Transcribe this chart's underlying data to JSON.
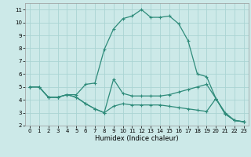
{
  "title": "",
  "xlabel": "Humidex (Indice chaleur)",
  "ylabel": "",
  "bg_color": "#cce9e8",
  "grid_color": "#aad4d3",
  "line_color": "#2e8b7a",
  "xlim": [
    -0.5,
    23.5
  ],
  "ylim": [
    2,
    11.5
  ],
  "yticks": [
    2,
    3,
    4,
    5,
    6,
    7,
    8,
    9,
    10,
    11
  ],
  "xticks": [
    0,
    1,
    2,
    3,
    4,
    5,
    6,
    7,
    8,
    9,
    10,
    11,
    12,
    13,
    14,
    15,
    16,
    17,
    18,
    19,
    20,
    21,
    22,
    23
  ],
  "series": [
    {
      "x": [
        0,
        1,
        2,
        3,
        4,
        5,
        6,
        7,
        8,
        9,
        10,
        11,
        12,
        13,
        14,
        15,
        16,
        17,
        18,
        19,
        20,
        21,
        22,
        23
      ],
      "y": [
        5.0,
        5.0,
        4.2,
        4.2,
        4.4,
        4.4,
        5.2,
        5.3,
        7.9,
        9.5,
        10.3,
        10.5,
        11.0,
        10.4,
        10.4,
        10.5,
        9.9,
        8.6,
        6.0,
        5.8,
        4.1,
        3.0,
        2.4,
        2.3
      ]
    },
    {
      "x": [
        0,
        1,
        2,
        3,
        4,
        5,
        6,
        7,
        8,
        9,
        10,
        11,
        12,
        13,
        14,
        15,
        16,
        17,
        18,
        19,
        20,
        21,
        22,
        23
      ],
      "y": [
        5.0,
        5.0,
        4.2,
        4.2,
        4.4,
        4.2,
        3.7,
        3.3,
        3.0,
        5.6,
        4.5,
        4.3,
        4.3,
        4.3,
        4.3,
        4.4,
        4.6,
        4.8,
        5.0,
        5.2,
        4.1,
        2.9,
        2.4,
        2.3
      ]
    },
    {
      "x": [
        0,
        1,
        2,
        3,
        4,
        5,
        6,
        7,
        8,
        9,
        10,
        11,
        12,
        13,
        14,
        15,
        16,
        17,
        18,
        19,
        20,
        21,
        22,
        23
      ],
      "y": [
        5.0,
        5.0,
        4.2,
        4.2,
        4.4,
        4.2,
        3.7,
        3.3,
        3.0,
        3.5,
        3.7,
        3.6,
        3.6,
        3.6,
        3.6,
        3.5,
        3.4,
        3.3,
        3.2,
        3.1,
        4.1,
        2.9,
        2.4,
        2.3
      ]
    }
  ],
  "xlabel_fontsize": 6.0,
  "tick_fontsize": 5.0
}
